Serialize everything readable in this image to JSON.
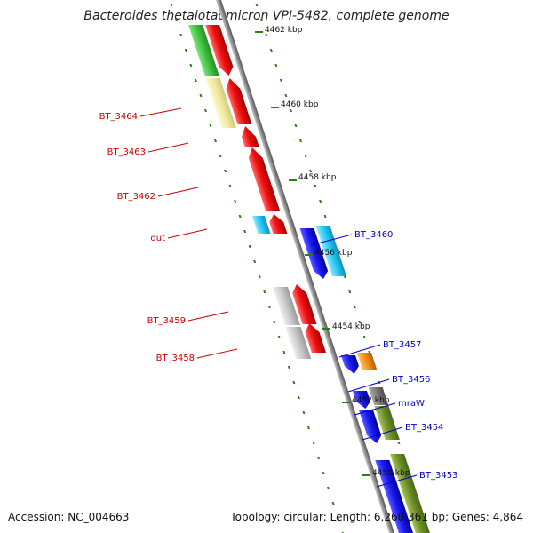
{
  "title": "Bacteroides thetaiotaomicron VPI-5482, complete genome",
  "footer": {
    "accession": "Accession: NC_004663",
    "summary": "Topology: circular; Length: 6,260,361 bp; Genes: 4,864"
  },
  "scale_labels": [
    "4462 kbp",
    "4460 kbp",
    "4458 kbp",
    "4456 kbp",
    "4454 kbp",
    "4452 kbp",
    "4450 kbp"
  ],
  "genes_left": [
    {
      "name": "BT_3464",
      "color": "#cc0000"
    },
    {
      "name": "BT_3463",
      "color": "#cc0000"
    },
    {
      "name": "BT_3462",
      "color": "#cc0000"
    },
    {
      "name": "dut",
      "color": "#cc0000"
    },
    {
      "name": "BT_3459",
      "color": "#cc0000"
    },
    {
      "name": "BT_3458",
      "color": "#cc0000"
    }
  ],
  "genes_right": [
    {
      "name": "BT_3460",
      "color": "#0000cc"
    },
    {
      "name": "BT_3457",
      "color": "#0000cc"
    },
    {
      "name": "BT_3456",
      "color": "#0000cc"
    },
    {
      "name": "mraW",
      "color": "#0000cc"
    },
    {
      "name": "BT_3454",
      "color": "#0000cc"
    },
    {
      "name": "BT_3453",
      "color": "#0000cc"
    }
  ],
  "colors": {
    "forward_strand": "#ee1111",
    "reverse_strand": "#1a1aee",
    "backbone": "#808080",
    "tick": "#2a7d1a",
    "green_feature": "#3ec23e",
    "yellow_feature": "#eeeaa0",
    "cyan_feature": "#22c8f0",
    "orange_feature": "#f08c10",
    "olive_feature": "#6b8e23",
    "gray_feature": "#c8c8c8",
    "darkgray_feature": "#777777"
  }
}
